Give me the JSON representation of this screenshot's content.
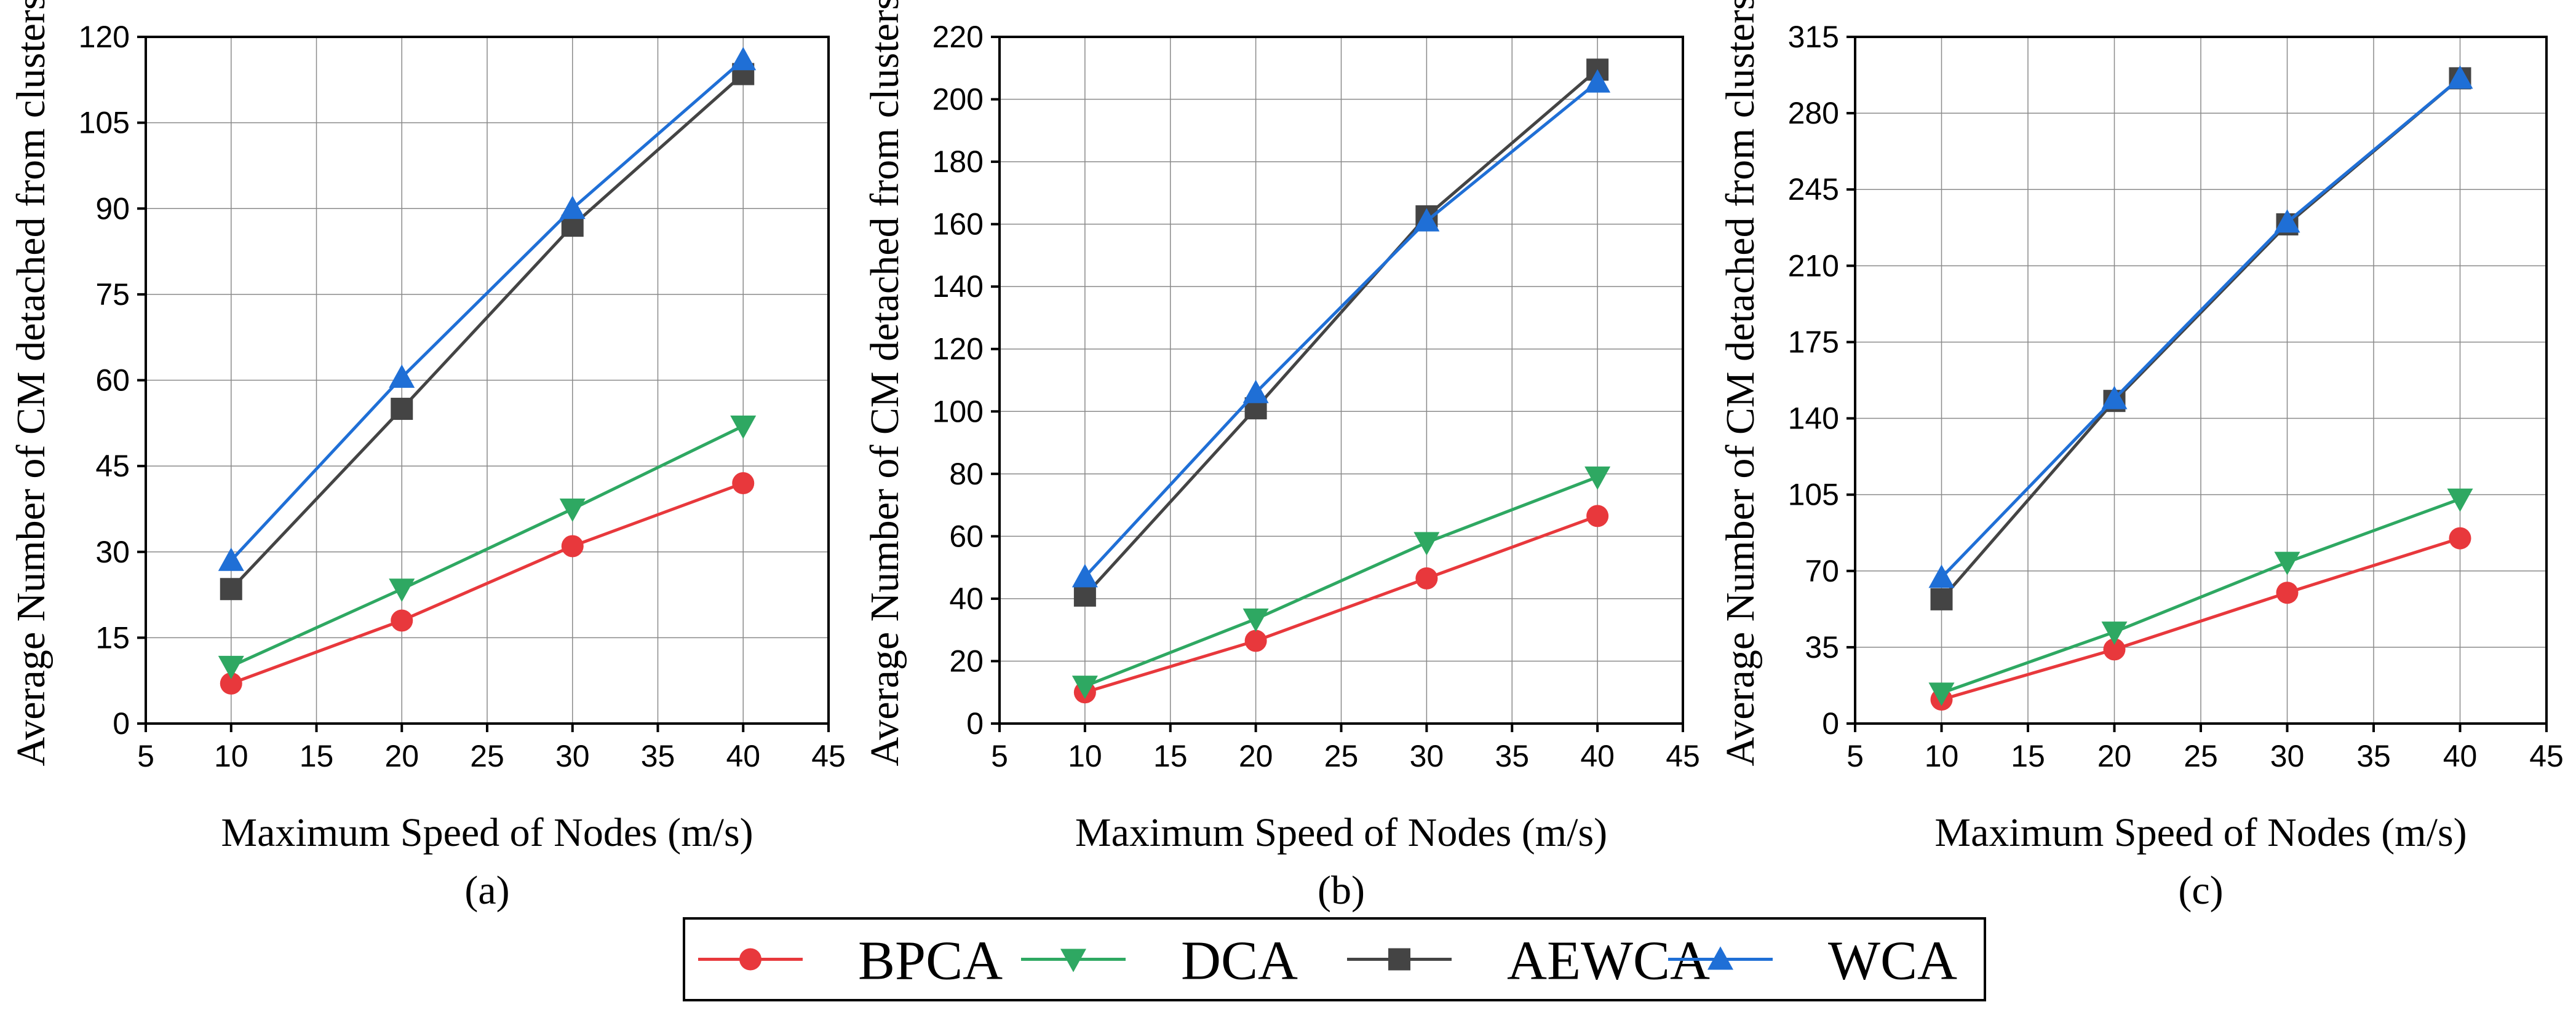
{
  "legend": {
    "position": "bottom-center",
    "items": [
      {
        "name": "BPCA",
        "color": "#e8383c",
        "marker": "circle"
      },
      {
        "name": "DCA",
        "color": "#2ea862",
        "marker": "triangle-down"
      },
      {
        "name": "AEWCA",
        "color": "#444444",
        "marker": "square"
      },
      {
        "name": "WCA",
        "color": "#1f6fd6",
        "marker": "triangle-up"
      }
    ]
  },
  "chart_data": [
    {
      "type": "line",
      "panel_label": "(a)",
      "xlabel": "Maximum Speed of Nodes (m/s)",
      "ylabel": "Average Number of CM detached from clusters",
      "xlim": [
        5,
        45
      ],
      "ylim": [
        0,
        120
      ],
      "xticks": [
        5,
        10,
        15,
        20,
        25,
        30,
        35,
        40,
        45
      ],
      "yticks": [
        0,
        15,
        30,
        45,
        60,
        75,
        90,
        105,
        120
      ],
      "grid": true,
      "x": [
        10,
        20,
        30,
        40
      ],
      "series": [
        {
          "name": "BPCA",
          "values": [
            7,
            18,
            31,
            42
          ]
        },
        {
          "name": "DCA",
          "values": [
            10,
            23.5,
            37.5,
            52
          ]
        },
        {
          "name": "AEWCA",
          "values": [
            23.5,
            55,
            87,
            113.5
          ]
        },
        {
          "name": "WCA",
          "values": [
            28.5,
            60.5,
            90,
            116
          ]
        }
      ]
    },
    {
      "type": "line",
      "panel_label": "(b)",
      "xlabel": "Maximum Speed of Nodes (m/s)",
      "ylabel": "Average Number of CM detached from clusters",
      "xlim": [
        5,
        45
      ],
      "ylim": [
        0,
        220
      ],
      "xticks": [
        5,
        10,
        15,
        20,
        25,
        30,
        35,
        40,
        45
      ],
      "yticks": [
        0,
        20,
        40,
        60,
        80,
        100,
        120,
        140,
        160,
        180,
        200,
        220
      ],
      "grid": true,
      "x": [
        10,
        20,
        30,
        40
      ],
      "series": [
        {
          "name": "BPCA",
          "values": [
            10,
            26.5,
            46.5,
            66.5
          ]
        },
        {
          "name": "DCA",
          "values": [
            12,
            33.5,
            58,
            79
          ]
        },
        {
          "name": "AEWCA",
          "values": [
            41,
            101,
            162.5,
            209.5
          ]
        },
        {
          "name": "WCA",
          "values": [
            47,
            106,
            161,
            205.5
          ]
        }
      ]
    },
    {
      "type": "line",
      "panel_label": "(c)",
      "xlabel": "Maximum Speed of Nodes (m/s)",
      "ylabel": "Average Number of CM detached from clusters",
      "xlim": [
        5,
        45
      ],
      "ylim": [
        0,
        315
      ],
      "xticks": [
        5,
        10,
        15,
        20,
        25,
        30,
        35,
        40,
        45
      ],
      "yticks": [
        0,
        35,
        70,
        105,
        140,
        175,
        210,
        245,
        280,
        315
      ],
      "grid": true,
      "x": [
        10,
        20,
        30,
        40
      ],
      "series": [
        {
          "name": "BPCA",
          "values": [
            11,
            34,
            60,
            85
          ]
        },
        {
          "name": "DCA",
          "values": [
            14,
            42,
            74,
            103
          ]
        },
        {
          "name": "AEWCA",
          "values": [
            57,
            148,
            229,
            296
          ]
        },
        {
          "name": "WCA",
          "values": [
            67,
            149,
            230,
            296
          ]
        }
      ]
    }
  ]
}
